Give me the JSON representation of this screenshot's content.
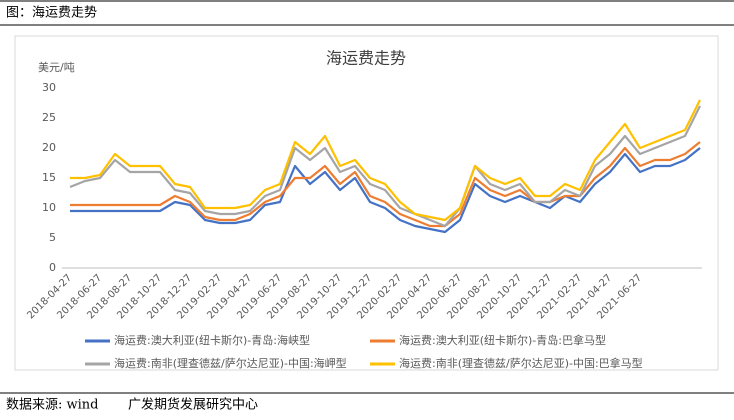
{
  "header": {
    "title": "图：海运费走势"
  },
  "chart_data": {
    "type": "line",
    "title": "海运费走势",
    "y_label": "美元/吨",
    "categories": [
      "2018-04-27",
      null,
      "2018-06-27",
      null,
      "2018-08-27",
      null,
      "2018-10-27",
      null,
      "2018-12-27",
      null,
      "2019-02-27",
      null,
      "2019-04-27",
      null,
      "2019-06-27",
      null,
      "2019-08-27",
      null,
      "2019-10-27",
      null,
      "2019-12-27",
      null,
      "2020-02-27",
      null,
      "2020-04-27",
      null,
      "2020-06-27",
      null,
      "2020-08-27",
      null,
      "2020-10-27",
      null,
      "2020-12-27",
      null,
      "2021-02-27",
      null,
      "2021-04-27",
      null,
      "2021-06-27",
      null,
      null,
      null,
      null
    ],
    "series": [
      {
        "name": "海运费:澳大利亚(纽卡斯尔)-青岛:海峡型",
        "color": "#4472c4",
        "values": [
          9.5,
          9.5,
          9.5,
          9.5,
          9.5,
          9.5,
          9.5,
          11,
          10.5,
          8,
          7.5,
          7.5,
          8,
          10.5,
          11,
          17,
          14,
          16,
          13,
          15,
          11,
          10,
          8,
          7,
          6.5,
          6,
          8,
          14,
          12,
          11,
          12,
          11,
          10,
          12,
          11,
          14,
          16,
          19,
          16,
          17,
          17,
          18,
          20
        ]
      },
      {
        "name": "海运费:澳大利亚(纽卡斯尔)-青岛:巴拿马型",
        "color": "#ed7d31",
        "values": [
          10.5,
          10.5,
          10.5,
          10.5,
          10.5,
          10.5,
          10.5,
          12,
          11,
          8.5,
          8,
          8,
          9,
          11,
          12,
          15,
          15,
          17,
          14,
          16,
          12,
          11,
          9,
          8,
          7,
          7,
          9,
          15,
          13,
          12,
          13,
          11,
          11,
          12,
          12,
          15,
          17,
          20,
          17,
          18,
          18,
          19,
          21
        ]
      },
      {
        "name": "海运费:南非(理查德兹/萨尔达尼亚)-中国:海岬型",
        "color": "#a5a5a5",
        "values": [
          13.5,
          14.5,
          15,
          18,
          16,
          16,
          16,
          13,
          12.5,
          9.5,
          9,
          9,
          9.5,
          12,
          13,
          20,
          18,
          20,
          16,
          17,
          14,
          13,
          10,
          9,
          8,
          7,
          10,
          17,
          14,
          13,
          14,
          11,
          11,
          13,
          12,
          17,
          19,
          22,
          19,
          20,
          21,
          22,
          27
        ]
      },
      {
        "name": "海运费:南非(理查德兹/萨尔达尼亚)-中国:巴拿马型",
        "color": "#ffc000",
        "values": [
          15,
          15,
          15.5,
          19,
          17,
          17,
          17,
          14,
          13.5,
          10,
          10,
          10,
          10.5,
          13,
          14,
          21,
          19,
          22,
          17,
          18,
          15,
          14,
          11,
          9,
          8.5,
          8,
          10,
          17,
          15,
          14,
          15,
          12,
          12,
          14,
          13,
          18,
          21,
          24,
          20,
          21,
          22,
          23,
          28
        ]
      }
    ],
    "ylim": [
      0,
      30
    ],
    "yticks": [
      0,
      5,
      10,
      15,
      20,
      25,
      30
    ],
    "grid": false
  },
  "footer": {
    "source": "数据来源: wind",
    "org": "广发期货发展研究中心"
  }
}
